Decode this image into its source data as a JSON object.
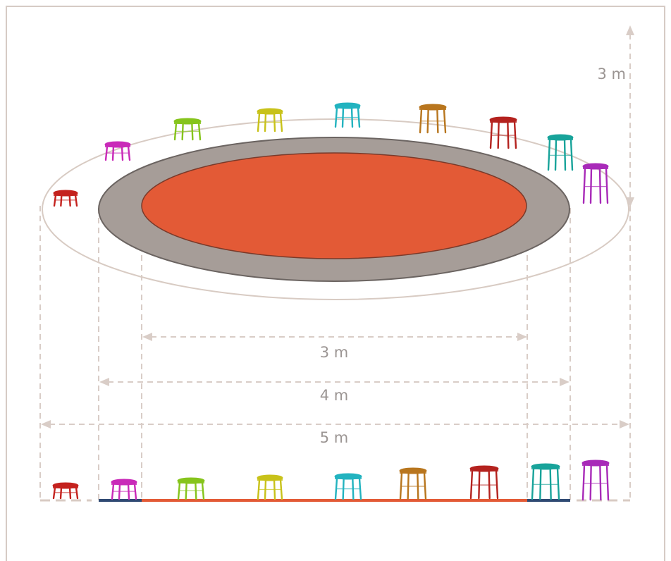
{
  "labels": {
    "height": "3 m",
    "inner_diameter": "3 m",
    "middle_diameter": "4 m",
    "outer_diameter": "5 m"
  },
  "colors": {
    "frame": "#d6cbc5",
    "dashed": "#d9cdc7",
    "outer_ring": "#d8cbc3",
    "track": "#a69d98",
    "track_stroke": "#6b6461",
    "center": "#e35a36",
    "center_line": "#e35a36",
    "track_line": "#2f4a73",
    "ground": "#d8cbc3"
  },
  "stools": [
    {
      "name": "red-small",
      "color": "#c4221e"
    },
    {
      "name": "magenta",
      "color": "#c92ab8"
    },
    {
      "name": "lime",
      "color": "#86c41c"
    },
    {
      "name": "yellow",
      "color": "#c8c21a"
    },
    {
      "name": "cyan",
      "color": "#22b3bf"
    },
    {
      "name": "orange",
      "color": "#b8761e"
    },
    {
      "name": "dark-red",
      "color": "#b4221e"
    },
    {
      "name": "teal",
      "color": "#18a39a"
    },
    {
      "name": "purple",
      "color": "#a82ab8"
    }
  ]
}
